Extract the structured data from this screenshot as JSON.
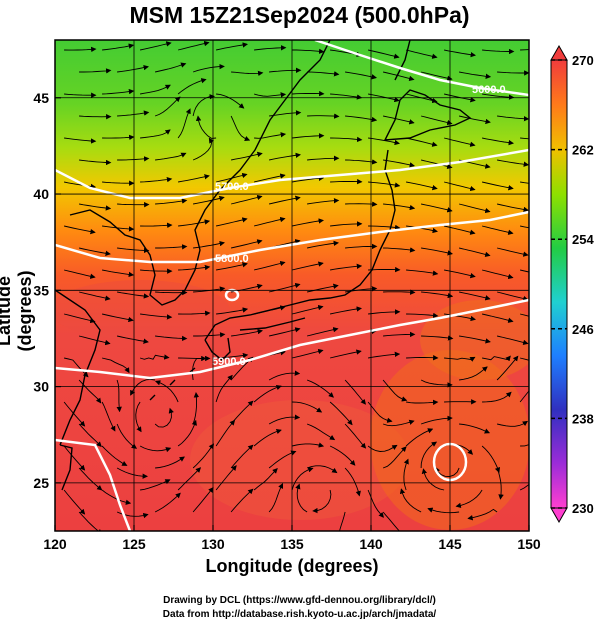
{
  "title": "MSM 15Z21Sep2024 (500.0hPa)",
  "axes": {
    "xlabel": "Longitude (degrees)",
    "ylabel": "Latitude  (degrees)",
    "xlim": [
      120,
      150
    ],
    "ylim": [
      22.5,
      48
    ],
    "xticks": [
      "120",
      "125",
      "130",
      "135",
      "140",
      "145",
      "150"
    ],
    "yticks": [
      "25",
      "30",
      "35",
      "40",
      "45"
    ]
  },
  "colorbar": {
    "range": [
      230,
      270
    ],
    "ticks": [
      "270",
      "262",
      "254",
      "246",
      "238",
      "230"
    ],
    "colors": [
      "#ff3fd0",
      "#3030c0",
      "#1e7fff",
      "#20d0d0",
      "#22cc44",
      "#8ee000",
      "#f0c000",
      "#ff7a1a",
      "#f03c3c"
    ]
  },
  "contours": [
    {
      "label": "5600.0"
    },
    {
      "label": "5700.0"
    },
    {
      "label": "5800.0"
    },
    {
      "label": "5900.0"
    }
  ],
  "credits": {
    "line1": "Drawing by DCL (https://www.gfd-dennou.org/library/dcl/)",
    "line2": "Data from http://database.rish.kyoto-u.ac.jp/arch/jmadata/"
  }
}
